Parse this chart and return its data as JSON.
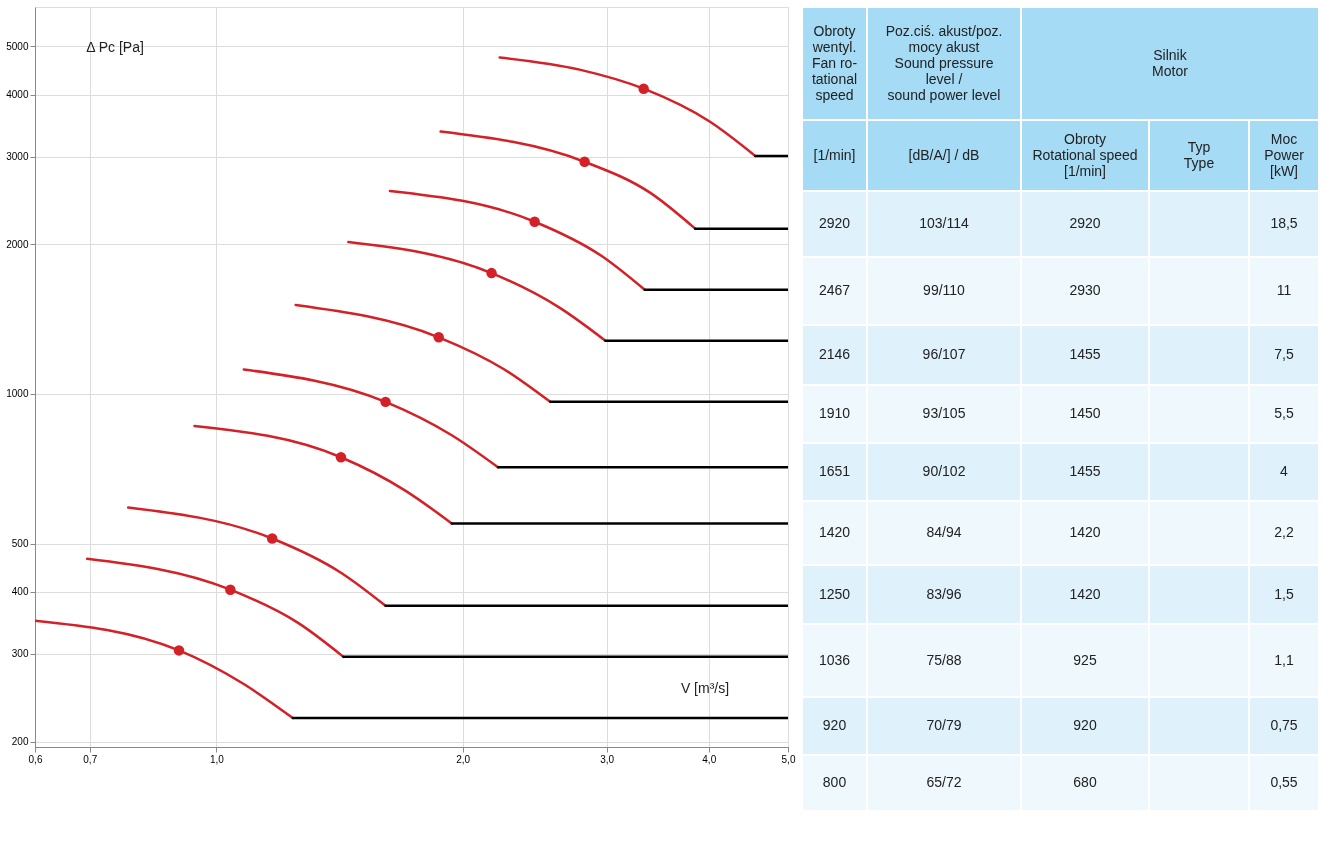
{
  "chart_data": [
    {
      "type": "line",
      "log": "xy",
      "grid": true,
      "xlabel": "V [m³/s]",
      "ylabel": "Δ Pc [Pa]",
      "xlim": [
        0.6,
        5.0
      ],
      "ylim": [
        195,
        6000
      ],
      "xticks": [
        {
          "value": 0.6,
          "label": "0,6"
        },
        {
          "value": 0.7,
          "label": "0,7"
        },
        {
          "value": 1.0,
          "label": "1,0"
        },
        {
          "value": 2.0,
          "label": "2,0"
        },
        {
          "value": 3.0,
          "label": "3,0"
        },
        {
          "value": 4.0,
          "label": "4,0"
        },
        {
          "value": 5.0,
          "label": "5,0"
        }
      ],
      "yticks": [
        200,
        300,
        400,
        500,
        1000,
        2000,
        3000,
        4000,
        5000
      ],
      "series": [
        {
          "color": "#d42027",
          "x": [
            2.22,
            2.78,
            3.33,
            4.01,
            4.56
          ],
          "values": [
            4750,
            4490,
            4110,
            3530,
            3010
          ]
        },
        {
          "color": "#d42027",
          "x": [
            1.88,
            2.82,
            3.39,
            3.85
          ],
          "values": [
            3370,
            2930,
            2540,
            2150
          ]
        },
        {
          "color": "#d42027",
          "x": [
            1.63,
            2.45,
            2.95,
            3.34
          ],
          "values": [
            2560,
            2220,
            1900,
            1620
          ]
        },
        {
          "color": "#d42027",
          "x": [
            1.45,
            2.17,
            2.63,
            2.99
          ],
          "values": [
            2020,
            1750,
            1490,
            1280
          ]
        },
        {
          "color": "#d42027",
          "x": [
            1.25,
            1.87,
            2.25,
            2.56
          ],
          "values": [
            1510,
            1300,
            1120,
            964
          ]
        },
        {
          "color": "#d42027",
          "x": [
            1.08,
            1.61,
            1.94,
            2.21
          ],
          "values": [
            1120,
            964,
            826,
            712
          ]
        },
        {
          "color": "#d42027",
          "x": [
            0.94,
            1.42,
            1.7,
            1.94
          ],
          "values": [
            862,
            746,
            640,
            549
          ]
        },
        {
          "color": "#d42027",
          "x": [
            0.78,
            1.17,
            1.42,
            1.61
          ],
          "values": [
            591,
            512,
            437,
            375
          ]
        },
        {
          "color": "#d42027",
          "x": [
            0.695,
            1.04,
            1.26,
            1.43
          ],
          "values": [
            466,
            404,
            346,
            296
          ]
        },
        {
          "color": "#d42027",
          "x": [
            0.6,
            0.9,
            1.08,
            1.24
          ],
          "values": [
            350,
            305,
            261,
            223
          ]
        },
        {
          "color": "#000000",
          "x": [
            4.56,
            5.0
          ],
          "values": [
            3010,
            3010
          ]
        },
        {
          "color": "#000000",
          "x": [
            3.85,
            5.0
          ],
          "values": [
            2150,
            2150
          ]
        },
        {
          "color": "#000000",
          "x": [
            3.34,
            5.0
          ],
          "values": [
            1620,
            1620
          ]
        },
        {
          "color": "#000000",
          "x": [
            2.99,
            5.0
          ],
          "values": [
            1280,
            1280
          ]
        },
        {
          "color": "#000000",
          "x": [
            2.56,
            5.0
          ],
          "values": [
            964,
            964
          ]
        },
        {
          "color": "#000000",
          "x": [
            2.21,
            5.0
          ],
          "values": [
            712,
            712
          ]
        },
        {
          "color": "#000000",
          "x": [
            1.94,
            5.0
          ],
          "values": [
            549,
            549
          ]
        },
        {
          "color": "#000000",
          "x": [
            1.61,
            5.0
          ],
          "values": [
            375,
            375
          ]
        },
        {
          "color": "#000000",
          "x": [
            1.43,
            5.0
          ],
          "values": [
            296,
            296
          ]
        },
        {
          "color": "#000000",
          "x": [
            1.24,
            5.0
          ],
          "values": [
            223,
            223
          ]
        },
        {
          "type": "scatter",
          "marker": "circle",
          "color": "#d42027",
          "x": [
            3.33,
            2.82,
            2.45,
            2.17,
            1.87,
            1.61,
            1.42,
            1.17,
            1.04,
            0.9
          ],
          "values": [
            4110,
            2930,
            2220,
            1750,
            1300,
            964,
            746,
            512,
            404,
            305
          ]
        }
      ]
    },
    {
      "type": "other",
      "annotations": [
        "Obroty\nwentyl.\nFan ro-\ntational\nspeed",
        "Poz.ciś. akust/poz.\nmocy akust\nSound pressure\nlevel /\nsound power level",
        "Silnik\nMotor",
        "[1/min]",
        "[dB/A/] / dB",
        "Obroty\nRotational speed\n[1/min]",
        "Typ\nType",
        "Moc\nPower\n[kW]",
        "2920",
        "103/114",
        "2920",
        "18,5",
        "2467",
        "99/110",
        "2930",
        "11",
        "2146",
        "96/107",
        "1455",
        "7,5",
        "1910",
        "93/105",
        "1450",
        "5,5",
        "1651",
        "90/102",
        "1455",
        "4",
        "1420",
        "84/94",
        "1420",
        "2,2",
        "1250",
        "83/96",
        "1420",
        "1,5",
        "1036",
        "75/88",
        "925",
        "1,1",
        "920",
        "70/79",
        "920",
        "0,75",
        "800",
        "65/72",
        "680",
        "0,55"
      ]
    }
  ]
}
